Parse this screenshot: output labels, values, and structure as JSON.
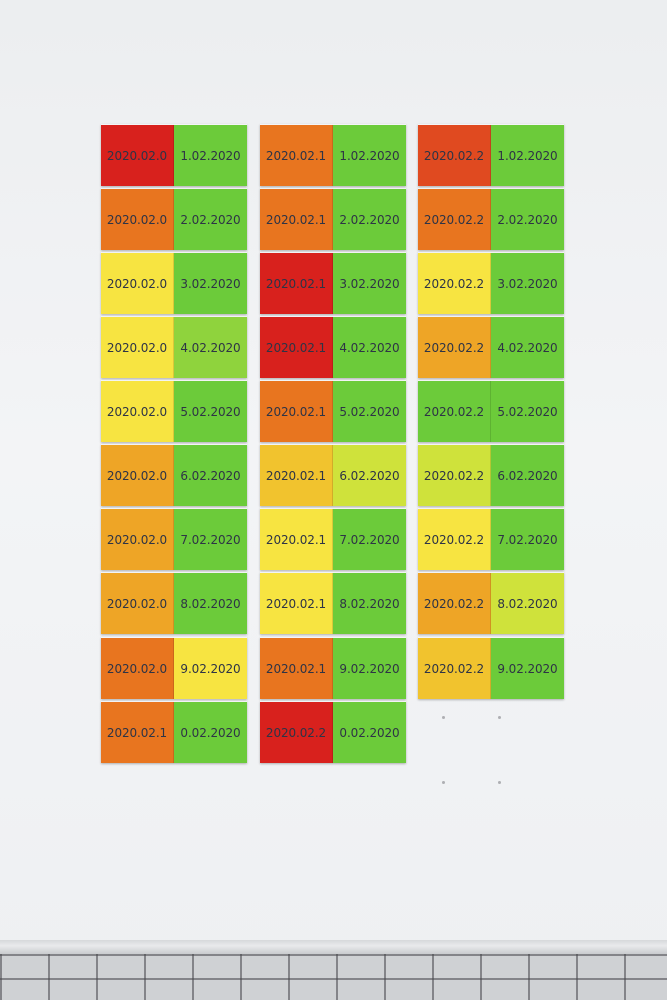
{
  "colors": {
    "red": "#d8211d",
    "red_orange": "#e04a20",
    "orange": "#e8751f",
    "orange_yellow": "#eea526",
    "yellow_orange": "#f1c32e",
    "yellow": "#f7e441",
    "yellow_green": "#cfe23b",
    "light_green": "#8fd33d",
    "green": "#6ccb3a"
  },
  "columns": [
    {
      "panels": [
        {
          "left_text": "2020.02.0",
          "left_color": "red",
          "right_text": "1.02.2020",
          "right_color": "green"
        },
        {
          "left_text": "2020.02.0",
          "left_color": "orange",
          "right_text": "2.02.2020",
          "right_color": "green"
        },
        {
          "left_text": "2020.02.0",
          "left_color": "yellow",
          "right_text": "3.02.2020",
          "right_color": "green"
        },
        {
          "left_text": "2020.02.0",
          "left_color": "yellow",
          "right_text": "4.02.2020",
          "right_color": "light_green"
        },
        {
          "left_text": "2020.02.0",
          "left_color": "yellow",
          "right_text": "5.02.2020",
          "right_color": "green"
        },
        {
          "left_text": "2020.02.0",
          "left_color": "orange_yellow",
          "right_text": "6.02.2020",
          "right_color": "green"
        },
        {
          "left_text": "2020.02.0",
          "left_color": "orange_yellow",
          "right_text": "7.02.2020",
          "right_color": "green"
        },
        {
          "left_text": "2020.02.0",
          "left_color": "orange_yellow",
          "right_text": "8.02.2020",
          "right_color": "green"
        },
        {
          "left_text": "2020.02.0",
          "left_color": "orange",
          "right_text": "9.02.2020",
          "right_color": "yellow"
        },
        {
          "left_text": "2020.02.1",
          "left_color": "orange",
          "right_text": "0.02.2020",
          "right_color": "green"
        }
      ]
    },
    {
      "panels": [
        {
          "left_text": "2020.02.1",
          "left_color": "orange",
          "right_text": "1.02.2020",
          "right_color": "green"
        },
        {
          "left_text": "2020.02.1",
          "left_color": "orange",
          "right_text": "2.02.2020",
          "right_color": "green"
        },
        {
          "left_text": "2020.02.1",
          "left_color": "red",
          "right_text": "3.02.2020",
          "right_color": "green"
        },
        {
          "left_text": "2020.02.1",
          "left_color": "red",
          "right_text": "4.02.2020",
          "right_color": "green"
        },
        {
          "left_text": "2020.02.1",
          "left_color": "orange",
          "right_text": "5.02.2020",
          "right_color": "green"
        },
        {
          "left_text": "2020.02.1",
          "left_color": "yellow_orange",
          "right_text": "6.02.2020",
          "right_color": "yellow_green"
        },
        {
          "left_text": "2020.02.1",
          "left_color": "yellow",
          "right_text": "7.02.2020",
          "right_color": "green"
        },
        {
          "left_text": "2020.02.1",
          "left_color": "yellow",
          "right_text": "8.02.2020",
          "right_color": "green"
        },
        {
          "left_text": "2020.02.1",
          "left_color": "orange",
          "right_text": "9.02.2020",
          "right_color": "green"
        },
        {
          "left_text": "2020.02.2",
          "left_color": "red",
          "right_text": "0.02.2020",
          "right_color": "green"
        }
      ]
    },
    {
      "panels": [
        {
          "left_text": "2020.02.2",
          "left_color": "red_orange",
          "right_text": "1.02.2020",
          "right_color": "green"
        },
        {
          "left_text": "2020.02.2",
          "left_color": "orange",
          "right_text": "2.02.2020",
          "right_color": "green"
        },
        {
          "left_text": "2020.02.2",
          "left_color": "yellow",
          "right_text": "3.02.2020",
          "right_color": "green"
        },
        {
          "left_text": "2020.02.2",
          "left_color": "orange_yellow",
          "right_text": "4.02.2020",
          "right_color": "green"
        },
        {
          "left_text": "2020.02.2",
          "left_color": "green",
          "right_text": "5.02.2020",
          "right_color": "green"
        },
        {
          "left_text": "2020.02.2",
          "left_color": "yellow_green",
          "right_text": "6.02.2020",
          "right_color": "green"
        },
        {
          "left_text": "2020.02.2",
          "left_color": "yellow",
          "right_text": "7.02.2020",
          "right_color": "green"
        },
        {
          "left_text": "2020.02.2",
          "left_color": "orange_yellow",
          "right_text": "8.02.2020",
          "right_color": "yellow_green"
        },
        {
          "left_text": "2020.02.2",
          "left_color": "yellow_orange",
          "right_text": "9.02.2020",
          "right_color": "green"
        }
      ]
    }
  ]
}
